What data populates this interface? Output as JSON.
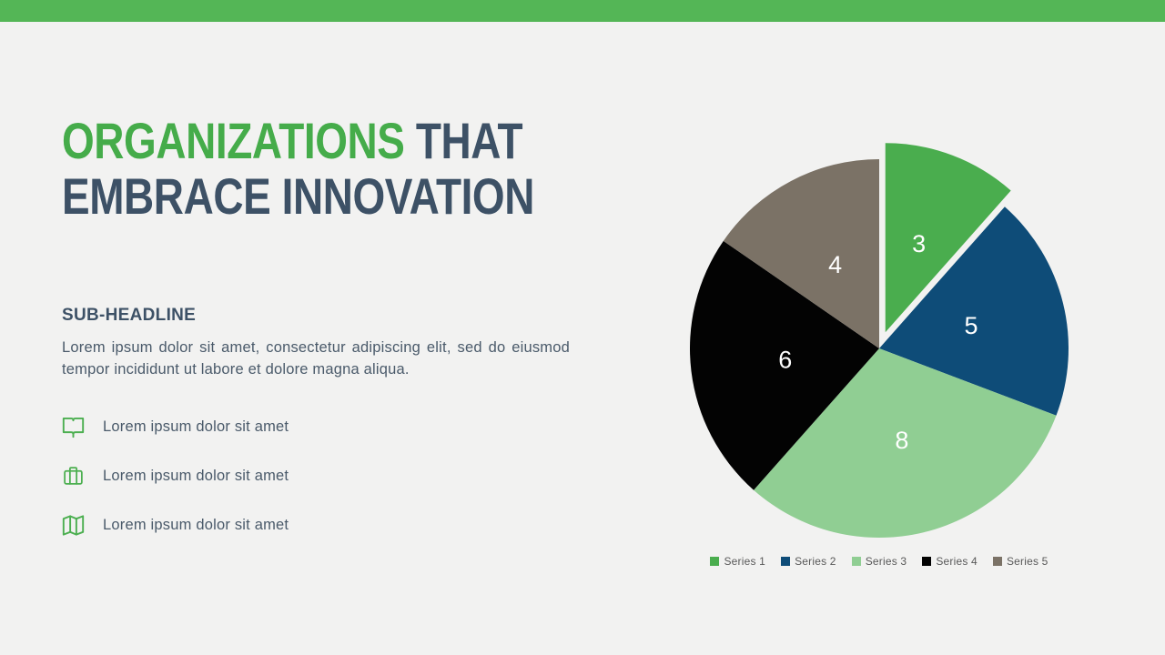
{
  "theme": {
    "top_bar_color": "#54B656",
    "background_color": "#F2F2F1",
    "title_accent_color": "#45AC4A",
    "title_dark_color": "#3D5166",
    "body_text_color": "#4A5A6A",
    "legend_text_color": "#595959",
    "icon_color": "#4CAF50"
  },
  "header": {
    "title_line1_accent": "ORGANIZATIONS",
    "title_line1_rest": " THAT",
    "title_line2": "EMBRACE INNOVATION"
  },
  "subsection": {
    "heading": "SUB-HEADLINE",
    "body": "Lorem ipsum dolor sit amet, consectetur adipiscing elit, sed do eiusmod tempor incididunt ut labore et dolore magna aliqua."
  },
  "bullets": [
    {
      "icon": "open-book-icon",
      "label": "Lorem ipsum dolor sit amet"
    },
    {
      "icon": "briefcase-icon",
      "label": "Lorem ipsum dolor sit amet"
    },
    {
      "icon": "map-icon",
      "label": "Lorem ipsum dolor sit amet"
    }
  ],
  "chart_data": {
    "type": "pie",
    "categories": [
      "Series 1",
      "Series 2",
      "Series 3",
      "Series 4",
      "Series 5"
    ],
    "values": [
      3,
      5,
      8,
      6,
      4
    ],
    "colors": [
      "#4AAD4E",
      "#0E4C78",
      "#90CE93",
      "#030303",
      "#7B7266"
    ],
    "exploded_slice_index": 0,
    "start_angle_deg": 0,
    "direction": "clockwise",
    "show_data_labels": true,
    "data_label_color": "#FFFFFF",
    "legend_position": "bottom",
    "title": ""
  }
}
